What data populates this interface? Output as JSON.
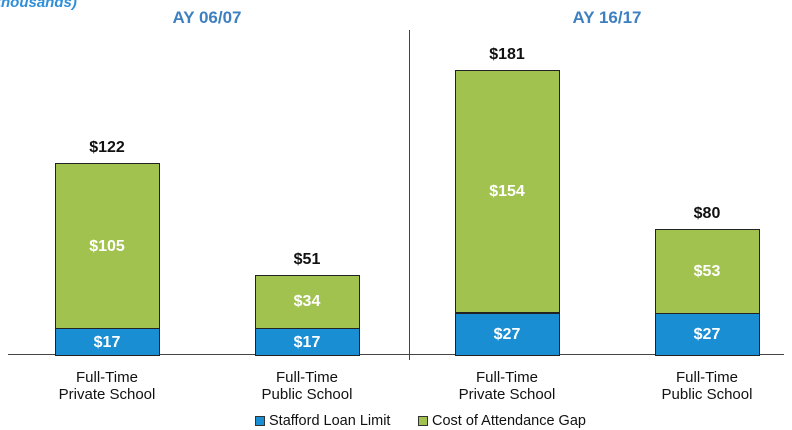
{
  "chart_data": {
    "type": "stacked_bar",
    "subtitle": "thousands)",
    "groups": [
      "AY 06/07",
      "AY 16/17"
    ],
    "categories": [
      "Full-Time\nPrivate School",
      "Full-Time\nPublic School",
      "Full-Time\nPrivate School",
      "Full-Time\nPublic School"
    ],
    "series": [
      {
        "name": "Stafford Loan Limit",
        "color": "#1a8ed3",
        "values": [
          17,
          17,
          27,
          27
        ],
        "value_labels": [
          "$17",
          "$17",
          "$27",
          "$27"
        ]
      },
      {
        "name": "Cost of Attendance Gap",
        "color": "#a2c24f",
        "values": [
          105,
          34,
          154,
          53
        ],
        "value_labels": [
          "$105",
          "$34",
          "$154",
          "$53"
        ]
      }
    ],
    "totals": [
      122,
      51,
      181,
      80
    ],
    "total_labels": [
      "$122",
      "$51",
      "$181",
      "$80"
    ]
  }
}
